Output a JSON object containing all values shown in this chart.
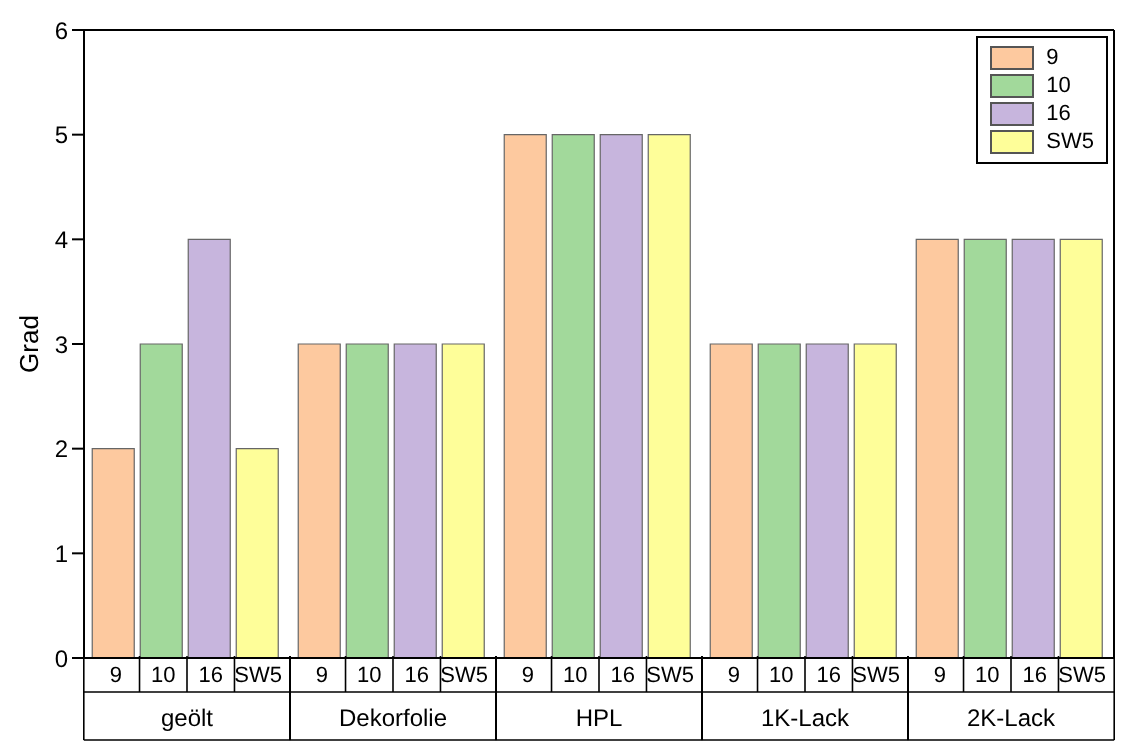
{
  "chart_data": {
    "type": "bar",
    "ylabel": "Grad",
    "categories": [
      "geölt",
      "Dekorfolie",
      "HPL",
      "1K-Lack",
      "2K-Lack"
    ],
    "series": [
      {
        "name": "9",
        "color": "#fdc99f",
        "values": [
          2,
          3,
          5,
          3,
          4
        ]
      },
      {
        "name": "10",
        "color": "#a2d99b",
        "values": [
          3,
          3,
          5,
          3,
          4
        ]
      },
      {
        "name": "16",
        "color": "#c7b5dd",
        "values": [
          4,
          3,
          5,
          3,
          4
        ]
      },
      {
        "name": "SW5",
        "color": "#fefe99",
        "values": [
          2,
          3,
          5,
          3,
          4
        ]
      }
    ],
    "ylim": [
      0,
      6
    ],
    "yticks": [
      0,
      1,
      2,
      3,
      4,
      5,
      6
    ],
    "grid": false,
    "legend": "top right"
  }
}
